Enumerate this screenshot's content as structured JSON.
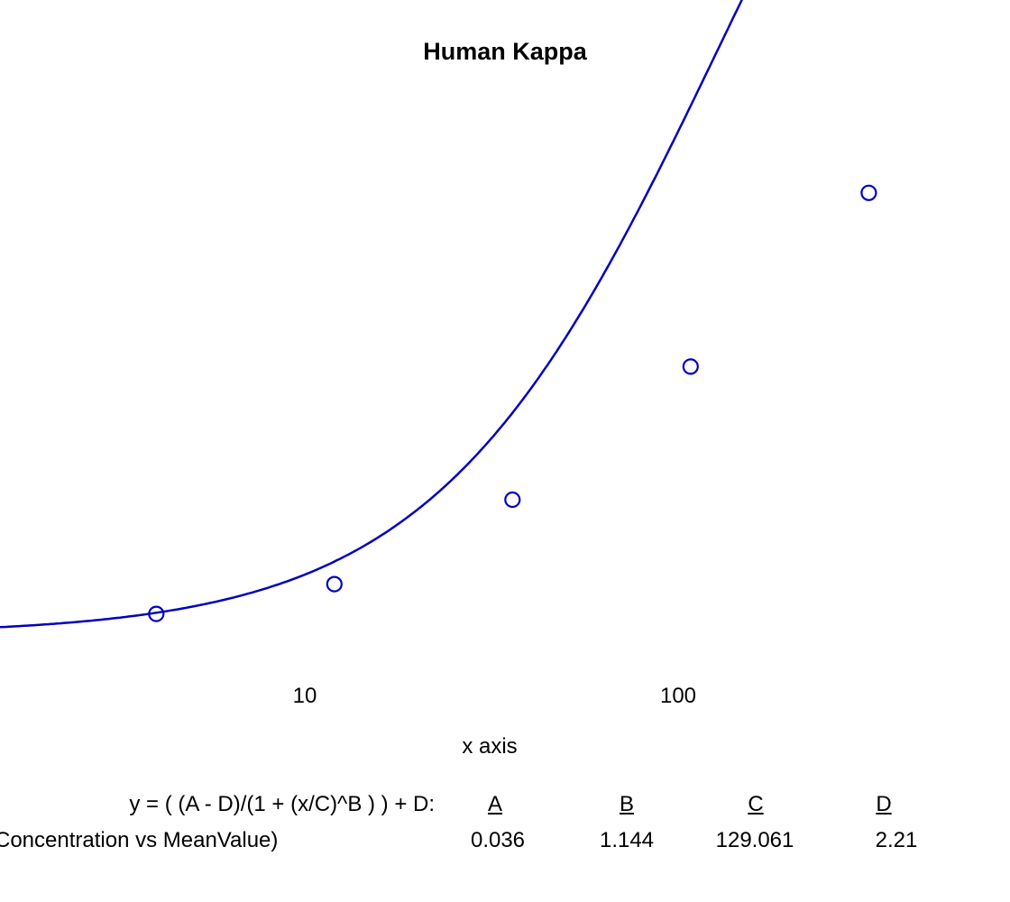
{
  "chart_data": {
    "type": "scatter",
    "title": "Human Kappa",
    "xlabel": "x axis",
    "ylabel": "",
    "xscale": "log",
    "xlim": [
      1.1,
      700
    ],
    "ylim": [
      0,
      1.45
    ],
    "x_ticks": [
      10,
      100
    ],
    "x_tick_labels": [
      "10",
      "100"
    ],
    "grid": false,
    "series": [
      {
        "marker": "open-circle",
        "color": "#0000c0",
        "points": [
          {
            "x": 4.0,
            "y": 0.074
          },
          {
            "x": 12.0,
            "y": 0.129
          },
          {
            "x": 36.0,
            "y": 0.285
          },
          {
            "x": 108.0,
            "y": 0.531
          },
          {
            "x": 324.0,
            "y": 0.852
          }
        ]
      }
    ],
    "fit": {
      "equation": "y = ( (A - D)/(1 + (x/C)^B ) ) + D:",
      "series_label": "Concentration vs MeanValue)",
      "color": "#0000c0",
      "params": [
        {
          "name": "A",
          "value": 0.036,
          "display": "0.036"
        },
        {
          "name": "B",
          "value": 1.144,
          "display": "1.144"
        },
        {
          "name": "C",
          "value": 129.061,
          "display": "129.061"
        },
        {
          "name": "D",
          "value": 2.21,
          "display": "2.21"
        }
      ]
    }
  }
}
